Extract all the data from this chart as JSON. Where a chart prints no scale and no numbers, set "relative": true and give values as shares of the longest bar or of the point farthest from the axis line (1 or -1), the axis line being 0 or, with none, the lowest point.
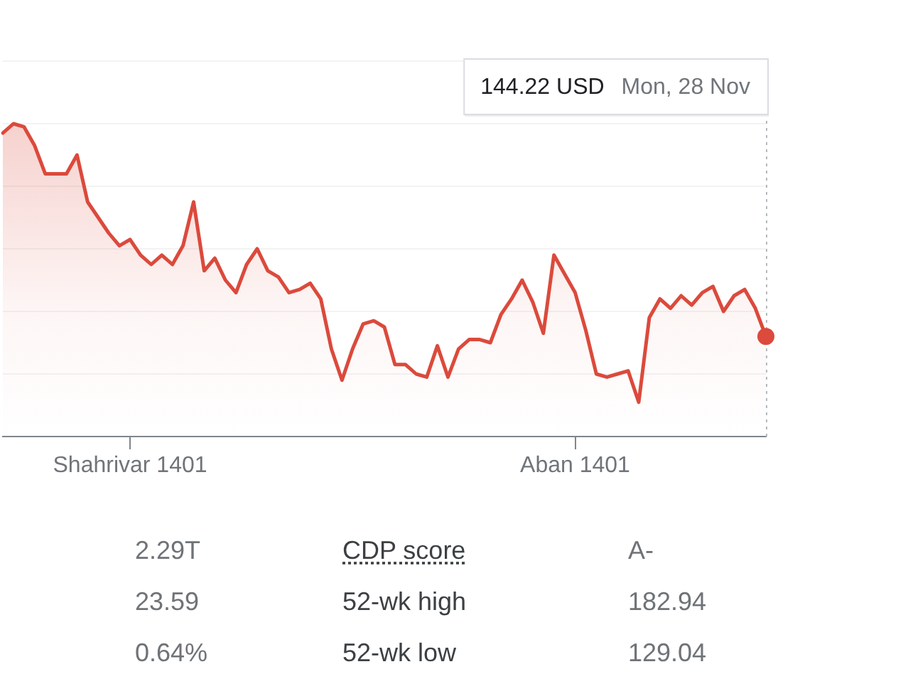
{
  "chart_data": [
    {
      "type": "area",
      "categories": [
        null,
        null,
        null,
        null,
        null,
        null,
        null,
        null,
        null,
        null,
        null,
        null,
        "Shahrivar 1401",
        null,
        null,
        null,
        null,
        null,
        null,
        null,
        null,
        null,
        null,
        null,
        null,
        null,
        null,
        null,
        null,
        null,
        null,
        null,
        null,
        null,
        null,
        null,
        null,
        null,
        null,
        null,
        null,
        null,
        null,
        null,
        null,
        null,
        null,
        null,
        null,
        null,
        null,
        null,
        null,
        null,
        "Aban 1401",
        null,
        null,
        null,
        null,
        null,
        null,
        null,
        null,
        null,
        null,
        null,
        null,
        null,
        null,
        null,
        null,
        null,
        null
      ],
      "values": [
        0.97,
        1,
        0.99,
        0.93,
        0.84,
        0.84,
        0.84,
        0.9,
        0.75,
        0.7,
        0.65,
        0.61,
        0.63,
        0.58,
        0.55,
        0.58,
        0.55,
        0.61,
        0.75,
        0.53,
        0.57,
        0.5,
        0.46,
        0.55,
        0.6,
        0.53,
        0.51,
        0.46,
        0.47,
        0.49,
        0.44,
        0.28,
        0.18,
        0.28,
        0.36,
        0.37,
        0.35,
        0.23,
        0.23,
        0.2,
        0.19,
        0.29,
        0.19,
        0.28,
        0.31,
        0.31,
        0.3,
        0.39,
        0.44,
        0.5,
        0.43,
        0.33,
        0.58,
        0.52,
        0.46,
        0.34,
        0.2,
        0.19,
        0.2,
        0.21,
        0.11,
        0.38,
        0.44,
        0.41,
        0.45,
        0.42,
        0.46,
        0.48,
        0.4,
        0.45,
        0.47,
        0.41,
        0.32
      ],
      "color": "#db4a3c",
      "relative": true,
      "grid": "y",
      "annotations": [
        "144.22 USD",
        "Mon, 28 Nov"
      ]
    },
    {
      "type": "other",
      "annotations": [
        "2.29T",
        "CDP score",
        "A-",
        "23.59",
        "52-wk high",
        "182.94",
        "0.64%",
        "52-wk low",
        "129.04"
      ]
    }
  ]
}
